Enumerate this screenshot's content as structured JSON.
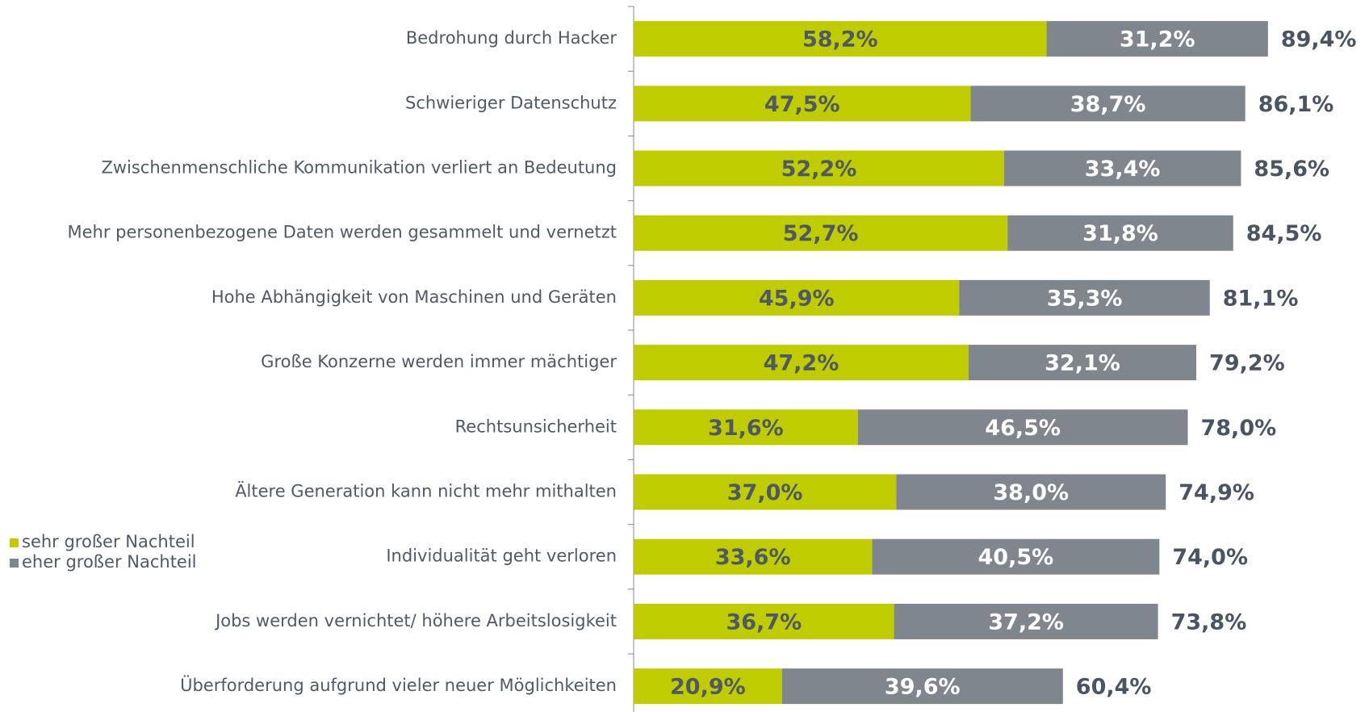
{
  "chart_data": {
    "type": "stacked_barh",
    "categories": [
      "Bedrohung durch Hacker",
      "Schwieriger Datenschutz",
      "Zwischenmenschliche Kommunikation verliert an Bedeutung",
      "Mehr personenbezogene Daten werden gesammelt und vernetzt",
      "Hohe Abhängigkeit von Maschinen und Geräten",
      "Große Konzerne werden immer mächtiger",
      "Rechtsunsicherheit",
      "Ältere Generation kann nicht mehr mithalten",
      "Individualität geht verloren",
      "Jobs werden vernichtet/ höhere Arbeitslosigkeit",
      "Überforderung aufgrund vieler neuer Möglichkeiten"
    ],
    "series": [
      {
        "name": "sehr großer Nachteil",
        "color": "#bfcc00",
        "values": [
          58.2,
          47.5,
          52.2,
          52.7,
          45.9,
          47.2,
          31.6,
          37.0,
          33.6,
          36.7,
          20.9
        ],
        "value_labels": [
          "58,2%",
          "47,5%",
          "52,2%",
          "52,7%",
          "45,9%",
          "47,2%",
          "31,6%",
          "37,0%",
          "33,6%",
          "36,7%",
          "20,9%"
        ]
      },
      {
        "name": "eher großer Nachteil",
        "color": "#7f868e",
        "values": [
          31.2,
          38.7,
          33.4,
          31.8,
          35.3,
          32.1,
          46.5,
          38.0,
          40.5,
          37.2,
          39.6
        ],
        "value_labels": [
          "31,2%",
          "38,7%",
          "33,4%",
          "31,8%",
          "35,3%",
          "32,1%",
          "46,5%",
          "38,0%",
          "40,5%",
          "37,2%",
          "39,6%"
        ]
      }
    ],
    "totals": {
      "values": [
        89.4,
        86.1,
        85.6,
        84.5,
        81.1,
        79.2,
        78.0,
        74.9,
        74.0,
        73.8,
        60.4
      ],
      "value_labels": [
        "89,4%",
        "86,1%",
        "85,6%",
        "84,5%",
        "81,1%",
        "79,2%",
        "78,0%",
        "74,9%",
        "74,0%",
        "73,8%",
        "60,4%"
      ]
    },
    "xlim": [
      0,
      100
    ]
  }
}
